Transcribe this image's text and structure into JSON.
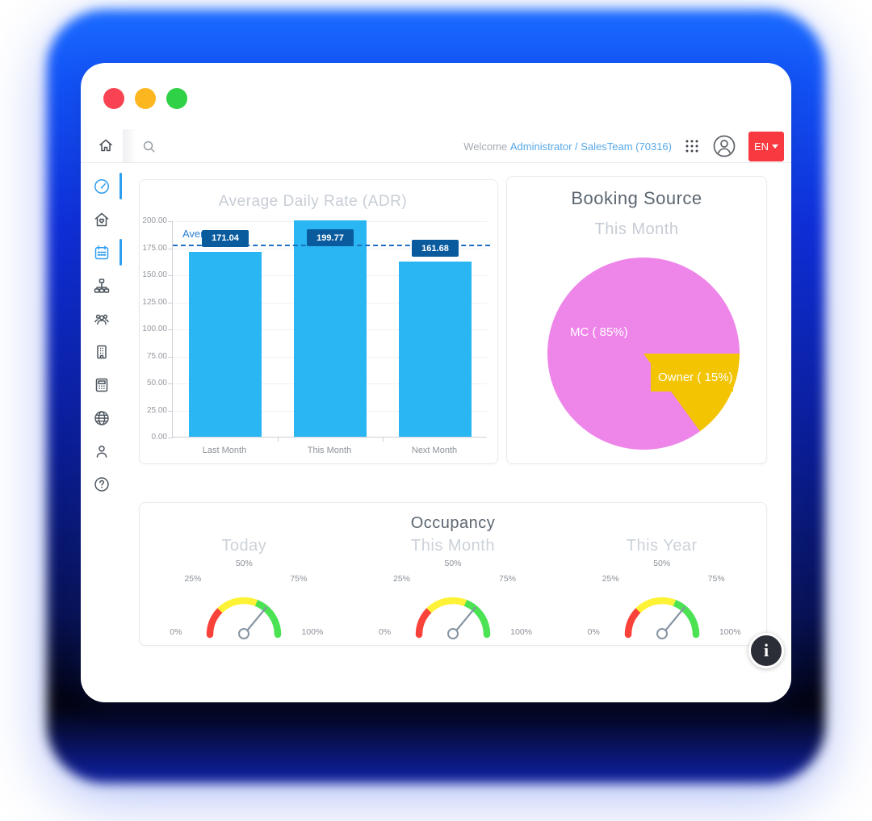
{
  "shell": {
    "traffic_lights": [
      {
        "name": "close",
        "color": "#f94352"
      },
      {
        "name": "minimize",
        "color": "#fcb61f"
      },
      {
        "name": "zoom",
        "color": "#2fd146"
      }
    ]
  },
  "topbar": {
    "welcome_label": "Welcome",
    "account_text": "Administrator / SalesTeam (70316)",
    "language": {
      "label": "EN"
    }
  },
  "sidebar": {
    "items": [
      {
        "id": "dashboard",
        "icon": "speedometer-icon",
        "active": true
      },
      {
        "id": "property",
        "icon": "house-heart-icon",
        "active": false
      },
      {
        "id": "calendar",
        "icon": "calendar-icon",
        "active": true
      },
      {
        "id": "channels",
        "icon": "sitemap-icon",
        "active": false
      },
      {
        "id": "guests",
        "icon": "users-icon",
        "active": false
      },
      {
        "id": "buildings",
        "icon": "building-icon",
        "active": false
      },
      {
        "id": "accounting",
        "icon": "calculator-icon",
        "active": false
      },
      {
        "id": "web",
        "icon": "globe-icon",
        "active": false
      },
      {
        "id": "profile",
        "icon": "person-icon",
        "active": false
      },
      {
        "id": "help",
        "icon": "help-icon",
        "active": false
      }
    ]
  },
  "adr": {
    "title": "Average Daily Rate (ADR)",
    "chart_data": {
      "type": "bar",
      "title": "Average Daily Rate (ADR)",
      "categories": [
        "Last Month",
        "This Month",
        "Next Month"
      ],
      "values": [
        171.04,
        199.77,
        161.68
      ],
      "value_labels": [
        "171.04",
        "199.77",
        "161.68"
      ],
      "ylim": [
        0,
        200
      ],
      "ytick_labels": [
        "0.00",
        "25.00",
        "50.00",
        "75.00",
        "100.00",
        "125.00",
        "150.00",
        "175.00",
        "200.00"
      ],
      "grid": true,
      "average_line_value": 177.5,
      "average_label": "Average",
      "bar_color": "#29b6f3",
      "value_label_bg": "#0a5b9e",
      "average_line_color": "#1f6fc0"
    }
  },
  "booking": {
    "title": "Booking Source",
    "subtitle": "This Month",
    "chart_data": {
      "type": "pie",
      "title": "Booking Source",
      "subtitle": "This Month",
      "start_angle_deg": 90,
      "slices": [
        {
          "label": "MC ( 85%)",
          "value": 85,
          "color": "#ee86e9"
        },
        {
          "label": "Owner ( 15%)",
          "value": 15,
          "color": "#f2c402"
        }
      ]
    }
  },
  "occupancy": {
    "title": "Occupancy",
    "chart_data": {
      "type": "gauge",
      "title": "Occupancy",
      "tick_labels": [
        "0%",
        "25%",
        "50%",
        "75%",
        "100%"
      ],
      "zones": [
        {
          "from": 0,
          "to": 25,
          "color": "#f8423a"
        },
        {
          "from": 25,
          "to": 62,
          "color": "#fdf235"
        },
        {
          "from": 62,
          "to": 100,
          "color": "#4be353"
        }
      ],
      "needle_color": "#8695a3",
      "gauges": [
        {
          "label": "Today",
          "needle_percent": 72
        },
        {
          "label": "This Month",
          "needle_percent": 72
        },
        {
          "label": "This Year",
          "needle_percent": 72
        }
      ]
    }
  },
  "info_button": {
    "label": "i"
  }
}
